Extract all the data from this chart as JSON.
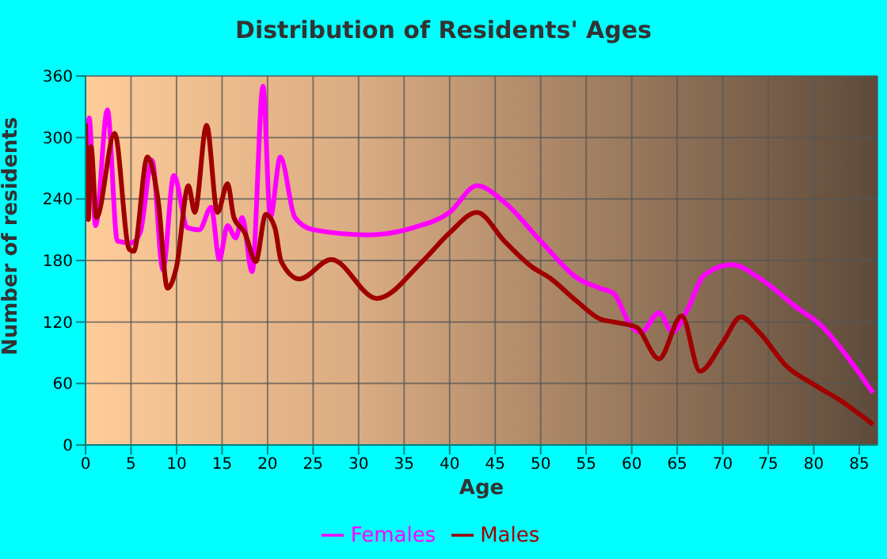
{
  "chart_data": {
    "type": "line",
    "title": "Distribution of Residents' Ages",
    "xlabel": "Age",
    "ylabel": "Number of residents",
    "xlim": [
      0,
      87
    ],
    "xticks": [
      0,
      5,
      10,
      15,
      20,
      25,
      30,
      35,
      40,
      45,
      50,
      55,
      60,
      65,
      70,
      75,
      80,
      85
    ],
    "ylim": [
      0,
      360
    ],
    "yticks": [
      0,
      60,
      120,
      180,
      240,
      300,
      360
    ],
    "grid": true,
    "legend": "bottom",
    "series": [
      {
        "name": "Males",
        "color": "#a00000",
        "x": [
          0,
          0.3,
          0.6,
          1.2,
          3.2,
          4.8,
          5.3,
          6.8,
          8,
          9,
          10,
          11.3,
          12,
          13.3,
          14.5,
          15.6,
          16.3,
          17.5,
          18.7,
          19.8,
          20.8,
          21.5,
          23.5,
          27,
          32,
          37,
          40,
          43,
          46,
          49,
          51,
          54,
          56.5,
          58,
          60.5,
          63,
          65.5,
          67.5,
          70,
          72,
          74,
          77,
          80,
          83,
          86.5
        ],
        "values": [
          314,
          220,
          291,
          222,
          304,
          191,
          189,
          281,
          237,
          153,
          174,
          253,
          227,
          312,
          227,
          255,
          222,
          207,
          179,
          225,
          212,
          179,
          162,
          181,
          143,
          179,
          207,
          227,
          199,
          174,
          163,
          140,
          123,
          120,
          115,
          84,
          126,
          72,
          100,
          125,
          110,
          77,
          59,
          43,
          20
        ]
      },
      {
        "name": "Females",
        "color": "#ff00ff",
        "x": [
          0,
          0.4,
          1.1,
          2.4,
          3.5,
          5,
          6,
          7.3,
          8.5,
          9.7,
          11.2,
          12.5,
          13.8,
          14.7,
          15.6,
          16.5,
          17.2,
          18.3,
          19.5,
          20.3,
          21.4,
          23,
          25,
          31,
          36,
          40,
          43,
          46,
          50,
          54,
          56.5,
          58,
          60,
          61,
          63,
          64.5,
          66,
          68,
          71,
          74,
          78,
          81,
          83,
          86.5
        ],
        "values": [
          222,
          319,
          214,
          327,
          199,
          197,
          207,
          278,
          171,
          263,
          212,
          210,
          232,
          181,
          214,
          202,
          222,
          169,
          350,
          222,
          281,
          222,
          210,
          205,
          212,
          227,
          253,
          237,
          199,
          163,
          153,
          148,
          115,
          110,
          129,
          110,
          130,
          166,
          176,
          163,
          135,
          115,
          94,
          51
        ]
      }
    ]
  }
}
